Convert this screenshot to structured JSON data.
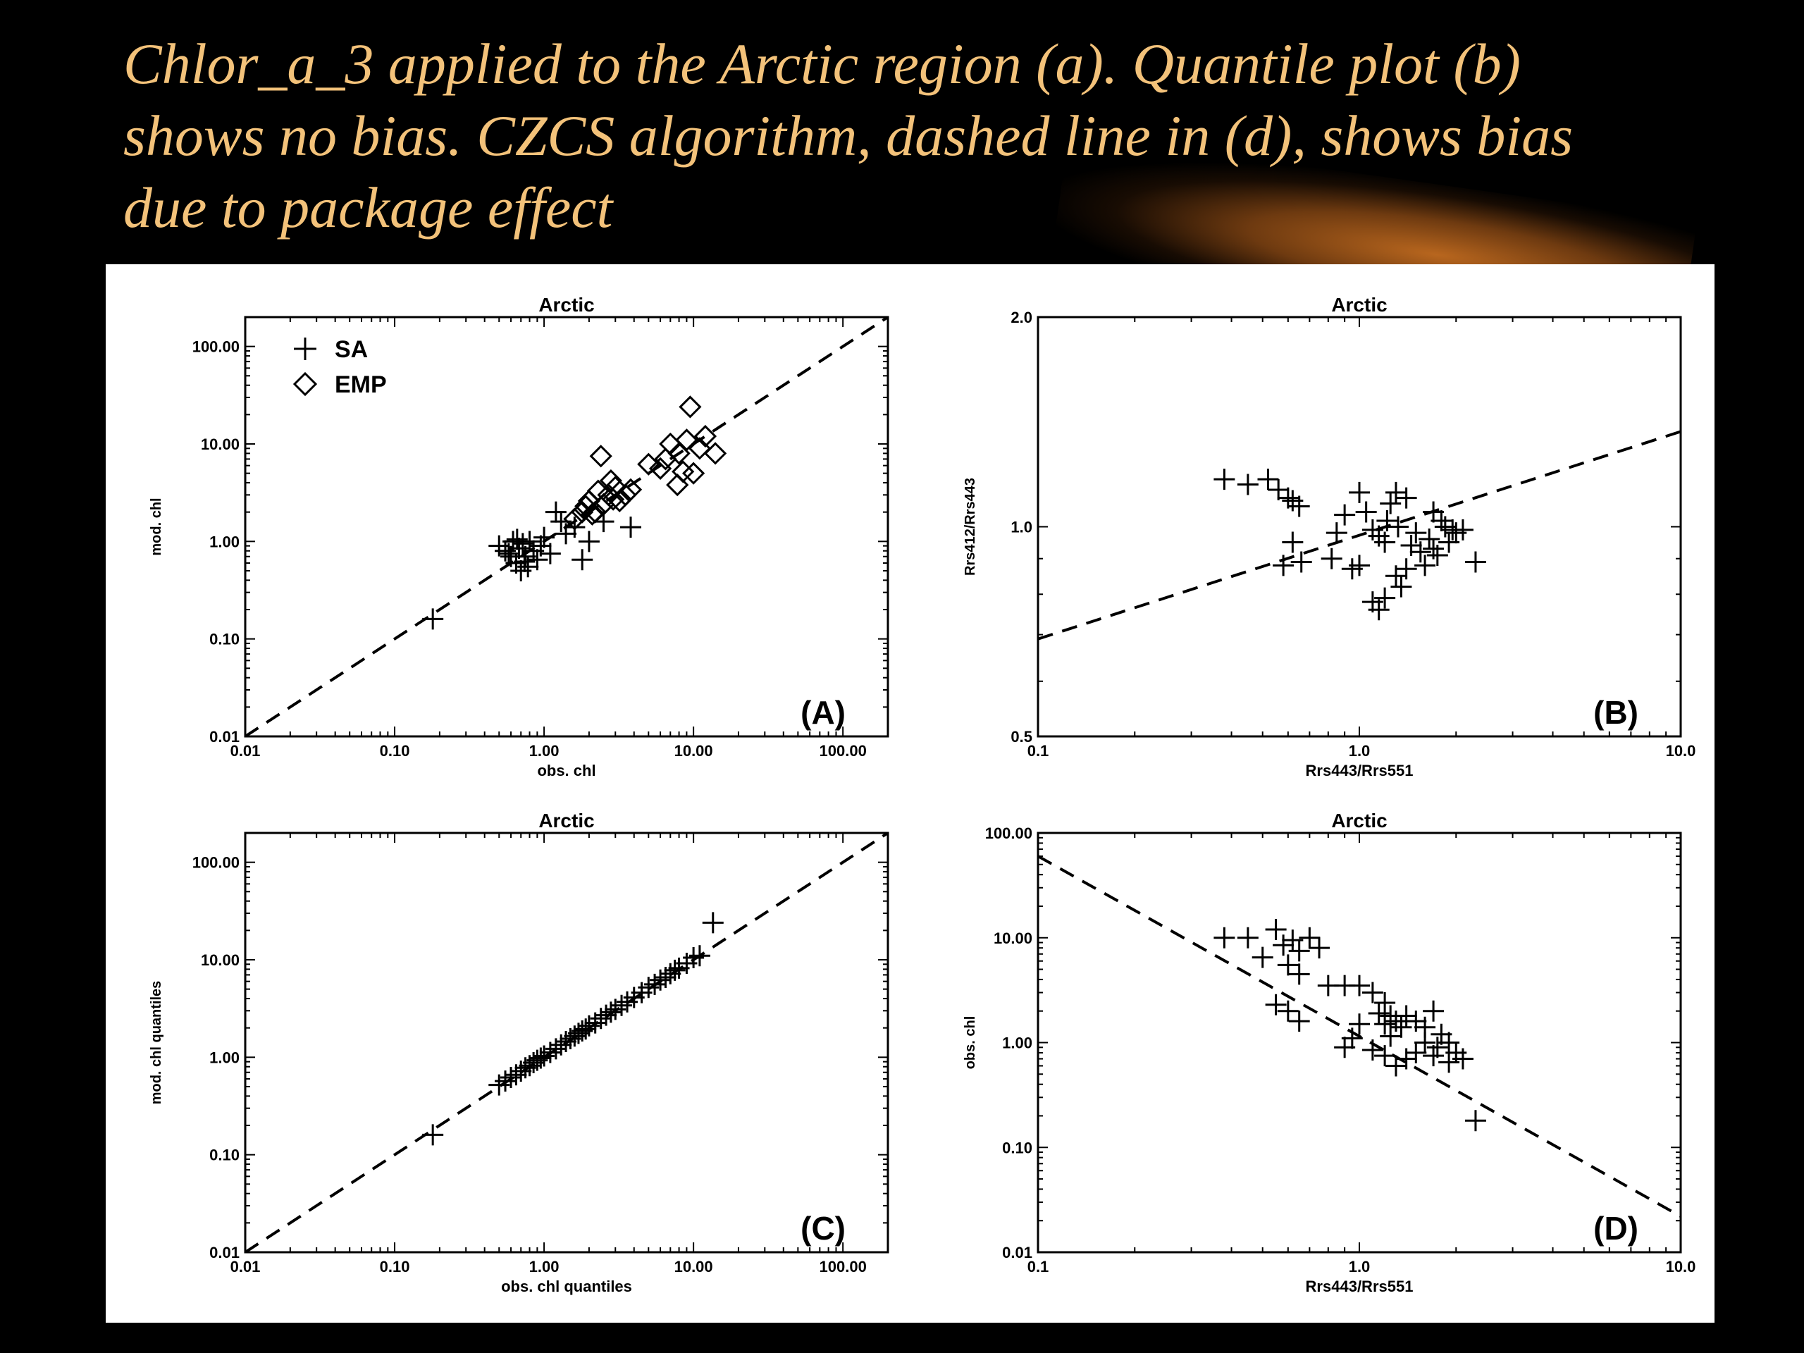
{
  "slide": {
    "title_lines": [
      "Chlor_a_3 applied to the Arctic region (a). Quantile plot (b)",
      "shows no bias. CZCS algorithm, dashed line in (d), shows bias",
      "due to package effect"
    ],
    "colors": {
      "background": "#000000",
      "title": "#f3c27a",
      "panel": "#ffffff",
      "glow": "#b8661e"
    }
  },
  "chart_data": [
    {
      "id": "A",
      "type": "scatter",
      "title": "Arctic",
      "xlabel": "obs. chl",
      "ylabel": "mod. chl",
      "xscale": "log",
      "yscale": "log",
      "xlim": [
        0.01,
        200
      ],
      "ylim": [
        0.01,
        200
      ],
      "xticks": [
        0.01,
        0.1,
        1,
        10,
        100
      ],
      "xticklabels": [
        "0.01",
        "0.10",
        "1.00",
        "10.00",
        "100.00"
      ],
      "yticks": [
        0.01,
        0.1,
        1,
        10,
        100
      ],
      "yticklabels": [
        "0.01",
        "0.10",
        "1.00",
        "10.00",
        "100.00"
      ],
      "panel_label": "(A)",
      "legend": {
        "position": "top-left",
        "entries": [
          {
            "marker": "plus",
            "label": "SA"
          },
          {
            "marker": "diamond",
            "label": "EMP"
          }
        ]
      },
      "lines": [
        {
          "style": "dashed",
          "x": [
            0.01,
            200
          ],
          "y": [
            0.01,
            200
          ]
        }
      ],
      "series": [
        {
          "name": "SA",
          "marker": "plus",
          "points": [
            [
              0.18,
              0.16
            ],
            [
              0.5,
              0.9
            ],
            [
              0.55,
              0.8
            ],
            [
              0.6,
              0.7
            ],
            [
              0.62,
              1.0
            ],
            [
              0.65,
              0.6
            ],
            [
              0.68,
              0.85
            ],
            [
              0.7,
              0.5
            ],
            [
              0.72,
              0.95
            ],
            [
              0.75,
              0.7
            ],
            [
              0.78,
              0.55
            ],
            [
              0.8,
              1.0
            ],
            [
              0.85,
              0.8
            ],
            [
              0.9,
              0.65
            ],
            [
              0.95,
              0.9
            ],
            [
              1.0,
              1.1
            ],
            [
              1.1,
              0.75
            ],
            [
              1.2,
              2.0
            ],
            [
              1.4,
              1.2
            ],
            [
              1.6,
              1.4
            ],
            [
              1.8,
              0.65
            ],
            [
              2.0,
              1.0
            ],
            [
              2.5,
              1.6
            ],
            [
              3.8,
              1.4
            ],
            [
              1.3,
              1.6
            ],
            [
              0.58,
              0.75
            ],
            [
              0.66,
              1.05
            ],
            [
              0.74,
              0.62
            ]
          ]
        },
        {
          "name": "EMP",
          "marker": "diamond",
          "points": [
            [
              1.6,
              1.7
            ],
            [
              1.8,
              2.0
            ],
            [
              2.0,
              2.6
            ],
            [
              2.2,
              2.0
            ],
            [
              2.3,
              3.3
            ],
            [
              2.5,
              2.4
            ],
            [
              2.7,
              3.0
            ],
            [
              2.8,
              4.2
            ],
            [
              3.0,
              3.6
            ],
            [
              3.2,
              2.6
            ],
            [
              3.5,
              3.0
            ],
            [
              3.8,
              3.4
            ],
            [
              2.4,
              7.5
            ],
            [
              5.0,
              6.2
            ],
            [
              6.0,
              5.6
            ],
            [
              6.5,
              7.0
            ],
            [
              7.0,
              10.0
            ],
            [
              8.0,
              8.0
            ],
            [
              8.5,
              5.2
            ],
            [
              7.8,
              3.8
            ],
            [
              9.0,
              11.0
            ],
            [
              10.0,
              5.0
            ],
            [
              9.5,
              24.0
            ],
            [
              11.0,
              9.0
            ],
            [
              12.0,
              12.0
            ],
            [
              14.0,
              8.0
            ],
            [
              2.1,
              1.9
            ],
            [
              2.9,
              2.7
            ],
            [
              1.9,
              2.3
            ]
          ]
        }
      ]
    },
    {
      "id": "B",
      "type": "scatter",
      "title": "Arctic",
      "xlabel": "Rrs443/Rrs551",
      "ylabel": "Rrs412/Rrs443",
      "xscale": "log",
      "yscale": "log",
      "xlim": [
        0.1,
        10
      ],
      "ylim": [
        0.5,
        2.0
      ],
      "xticks": [
        0.1,
        1,
        10
      ],
      "xticklabels": [
        "0.1",
        "1.0",
        "10.0"
      ],
      "yticks": [
        0.5,
        1,
        2
      ],
      "yticklabels": [
        "0.5",
        "1.0",
        "2.0"
      ],
      "panel_label": "(B)",
      "lines": [
        {
          "style": "dashed",
          "x": [
            0.1,
            10
          ],
          "y": [
            0.69,
            1.37
          ]
        }
      ],
      "series": [
        {
          "name": "SA",
          "marker": "plus",
          "points": [
            [
              0.38,
              1.17
            ],
            [
              0.45,
              1.15
            ],
            [
              0.52,
              1.17
            ],
            [
              0.56,
              1.13
            ],
            [
              0.6,
              1.1
            ],
            [
              0.62,
              1.09
            ],
            [
              0.65,
              1.07
            ],
            [
              0.58,
              0.88
            ],
            [
              0.62,
              0.95
            ],
            [
              0.66,
              0.89
            ],
            [
              0.82,
              0.9
            ],
            [
              0.85,
              0.98
            ],
            [
              0.9,
              1.04
            ],
            [
              1.0,
              1.12
            ],
            [
              1.05,
              1.05
            ],
            [
              1.1,
              0.99
            ],
            [
              1.15,
              0.97
            ],
            [
              1.2,
              0.95
            ],
            [
              1.22,
              1.02
            ],
            [
              1.25,
              1.08
            ],
            [
              1.3,
              1.12
            ],
            [
              1.32,
              1.0
            ],
            [
              1.4,
              1.1
            ],
            [
              1.45,
              0.94
            ],
            [
              1.5,
              0.98
            ],
            [
              1.55,
              0.92
            ],
            [
              1.6,
              0.88
            ],
            [
              1.65,
              0.96
            ],
            [
              1.7,
              0.93
            ],
            [
              1.75,
              0.91
            ],
            [
              1.8,
              1.02
            ],
            [
              1.85,
              1.0
            ],
            [
              1.95,
              0.99
            ],
            [
              2.0,
              0.98
            ],
            [
              2.1,
              0.99
            ],
            [
              2.3,
              0.89
            ],
            [
              1.3,
              0.85
            ],
            [
              1.35,
              0.82
            ],
            [
              1.4,
              0.87
            ],
            [
              1.1,
              0.78
            ],
            [
              1.15,
              0.76
            ],
            [
              1.2,
              0.79
            ],
            [
              0.95,
              0.87
            ],
            [
              1.0,
              0.88
            ],
            [
              1.9,
              0.95
            ],
            [
              1.7,
              1.05
            ]
          ]
        }
      ]
    },
    {
      "id": "C",
      "type": "scatter",
      "title": "Arctic",
      "xlabel": "obs. chl quantiles",
      "ylabel": "mod. chl quantiles",
      "xscale": "log",
      "yscale": "log",
      "xlim": [
        0.01,
        200
      ],
      "ylim": [
        0.01,
        200
      ],
      "xticks": [
        0.01,
        0.1,
        1,
        10,
        100
      ],
      "xticklabels": [
        "0.01",
        "0.10",
        "1.00",
        "10.00",
        "100.00"
      ],
      "yticks": [
        0.01,
        0.1,
        1,
        10,
        100
      ],
      "yticklabels": [
        "0.01",
        "0.10",
        "1.00",
        "10.00",
        "100.00"
      ],
      "panel_label": "(C)",
      "lines": [
        {
          "style": "dashed",
          "x": [
            0.01,
            200
          ],
          "y": [
            0.01,
            200
          ]
        }
      ],
      "series": [
        {
          "name": "SA",
          "marker": "plus",
          "points": [
            [
              0.18,
              0.16
            ],
            [
              0.5,
              0.52
            ],
            [
              0.55,
              0.57
            ],
            [
              0.6,
              0.62
            ],
            [
              0.65,
              0.66
            ],
            [
              0.7,
              0.72
            ],
            [
              0.75,
              0.78
            ],
            [
              0.8,
              0.82
            ],
            [
              0.85,
              0.88
            ],
            [
              0.9,
              0.93
            ],
            [
              0.95,
              0.98
            ],
            [
              1.0,
              1.03
            ],
            [
              1.1,
              1.12
            ],
            [
              1.2,
              1.22
            ],
            [
              1.3,
              1.34
            ],
            [
              1.4,
              1.45
            ],
            [
              1.5,
              1.55
            ],
            [
              1.6,
              1.65
            ],
            [
              1.7,
              1.76
            ],
            [
              1.8,
              1.86
            ],
            [
              1.9,
              1.95
            ],
            [
              2.0,
              2.1
            ],
            [
              2.2,
              2.25
            ],
            [
              2.4,
              2.5
            ],
            [
              2.6,
              2.7
            ],
            [
              2.8,
              2.9
            ],
            [
              3.0,
              3.1
            ],
            [
              3.3,
              3.4
            ],
            [
              3.6,
              3.7
            ],
            [
              4.0,
              4.1
            ],
            [
              4.5,
              4.6
            ],
            [
              5.0,
              5.2
            ],
            [
              5.5,
              5.6
            ],
            [
              6.0,
              6.2
            ],
            [
              6.5,
              6.6
            ],
            [
              7.0,
              7.2
            ],
            [
              7.5,
              7.8
            ],
            [
              8.0,
              8.2
            ],
            [
              9.0,
              9.2
            ],
            [
              10.0,
              10.5
            ],
            [
              11.0,
              11.0
            ],
            [
              13.5,
              24.0
            ]
          ]
        }
      ]
    },
    {
      "id": "D",
      "type": "scatter",
      "title": "Arctic",
      "xlabel": "Rrs443/Rrs551",
      "ylabel": "obs. chl",
      "xscale": "log",
      "yscale": "log",
      "xlim": [
        0.1,
        10
      ],
      "ylim": [
        0.01,
        100
      ],
      "xticks": [
        0.1,
        1,
        10
      ],
      "xticklabels": [
        "0.1",
        "1.0",
        "10.0"
      ],
      "yticks": [
        0.01,
        0.1,
        1,
        10,
        100
      ],
      "yticklabels": [
        "0.01",
        "0.10",
        "1.00",
        "10.00",
        "100.00"
      ],
      "panel_label": "(D)",
      "lines": [
        {
          "style": "dashed",
          "x": [
            0.1,
            10
          ],
          "y": [
            60.0,
            0.022
          ]
        }
      ],
      "series": [
        {
          "name": "SA",
          "marker": "plus",
          "points": [
            [
              0.38,
              10.0
            ],
            [
              0.45,
              10.0
            ],
            [
              0.5,
              6.5
            ],
            [
              0.55,
              12.0
            ],
            [
              0.58,
              8.5
            ],
            [
              0.62,
              9.5
            ],
            [
              0.65,
              7.5
            ],
            [
              0.7,
              10.0
            ],
            [
              0.75,
              8.0
            ],
            [
              0.6,
              5.5
            ],
            [
              0.65,
              4.5
            ],
            [
              0.55,
              2.3
            ],
            [
              0.6,
              2.0
            ],
            [
              0.65,
              1.6
            ],
            [
              0.8,
              3.5
            ],
            [
              0.9,
              3.5
            ],
            [
              1.0,
              3.5
            ],
            [
              1.1,
              3.0
            ],
            [
              1.2,
              2.4
            ],
            [
              1.15,
              1.9
            ],
            [
              1.2,
              1.5
            ],
            [
              1.25,
              1.8
            ],
            [
              1.3,
              1.6
            ],
            [
              1.35,
              1.4
            ],
            [
              1.4,
              1.8
            ],
            [
              1.5,
              1.6
            ],
            [
              1.6,
              1.4
            ],
            [
              1.7,
              2.0
            ],
            [
              1.8,
              1.2
            ],
            [
              1.9,
              1.0
            ],
            [
              2.0,
              0.8
            ],
            [
              2.1,
              0.7
            ],
            [
              1.9,
              0.65
            ],
            [
              1.7,
              0.75
            ],
            [
              1.5,
              0.8
            ],
            [
              1.4,
              0.7
            ],
            [
              1.3,
              0.6
            ],
            [
              1.2,
              0.75
            ],
            [
              1.1,
              0.85
            ],
            [
              1.0,
              1.5
            ],
            [
              0.95,
              1.1
            ],
            [
              0.9,
              0.9
            ],
            [
              2.3,
              0.18
            ],
            [
              1.6,
              1.0
            ],
            [
              1.75,
              0.9
            ],
            [
              1.25,
              1.15
            ]
          ]
        }
      ]
    }
  ]
}
